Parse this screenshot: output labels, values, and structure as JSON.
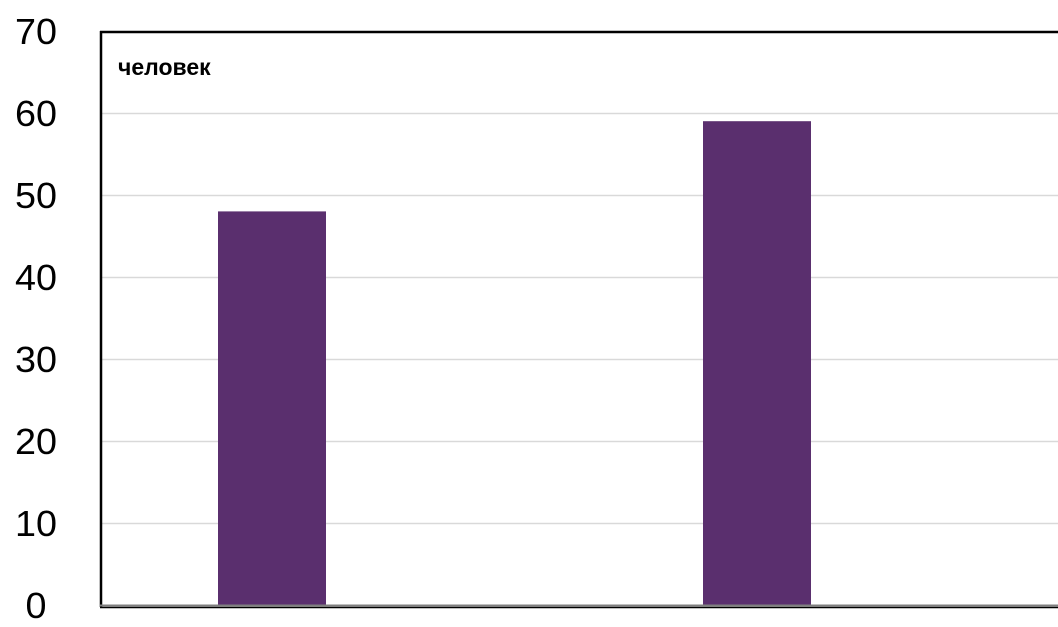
{
  "chart_data": {
    "type": "bar",
    "title": "",
    "unit_label": "человек",
    "xlabel": "",
    "ylabel": "",
    "categories": [
      "",
      ""
    ],
    "values": [
      48,
      59
    ],
    "ylim": [
      0,
      70
    ],
    "yticks": [
      0,
      10,
      20,
      30,
      40,
      50,
      60,
      70
    ],
    "grid": true,
    "legend": "none",
    "bar_color": "#5a2f6e",
    "grid_color": "#d9d9d9",
    "axis_color": "#000000"
  }
}
